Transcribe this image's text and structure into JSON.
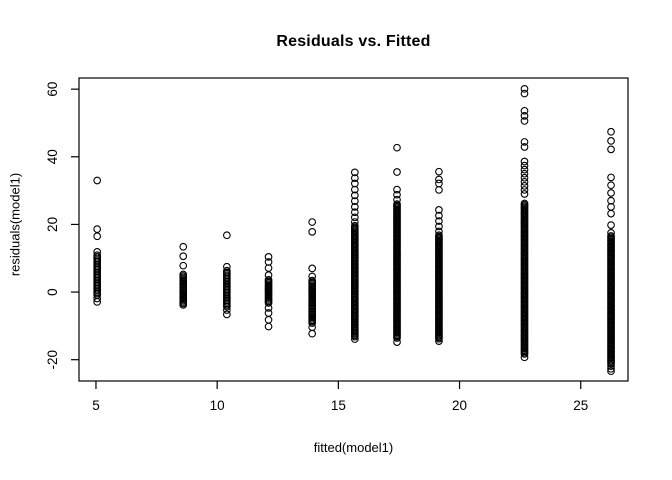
{
  "title": "Residuals vs. Fitted",
  "colors": {
    "background": "#ffffff",
    "foreground": "#000000"
  },
  "chart_data": {
    "type": "scatter",
    "title": "Residuals vs. Fitted",
    "xlabel": "fitted(model1)",
    "ylabel": "residuals(model1)",
    "xlim": [
      4.3,
      26.95
    ],
    "ylim": [
      -26.3,
      63.3
    ],
    "x_ticks": [
      5,
      10,
      15,
      20,
      25
    ],
    "y_ticks": [
      -20,
      0,
      20,
      40,
      60
    ],
    "grid": false,
    "legend": null,
    "marker": {
      "shape": "open-circle",
      "radius_px": 3.3,
      "color": "#000000"
    },
    "columns": [
      {
        "x": 5.05,
        "points": [
          33.0,
          18.6,
          16.5,
          11.9,
          -1.9,
          -2.9
        ],
        "dense": [
          {
            "from": 10.9,
            "to": -0.9,
            "n": 26
          }
        ]
      },
      {
        "x": 8.6,
        "points": [
          13.4,
          10.6,
          7.8
        ],
        "dense": [
          {
            "from": 5.2,
            "to": -3.8,
            "n": 22
          }
        ]
      },
      {
        "x": 10.4,
        "points": [
          16.8,
          7.5,
          -5.3,
          -6.6
        ],
        "dense": [
          {
            "from": 6.3,
            "to": -4.3,
            "n": 24
          }
        ]
      },
      {
        "x": 12.12,
        "points": [
          10.4,
          8.9,
          7.1,
          5.0,
          -4.7,
          -6.2,
          -8.2,
          -10.2
        ],
        "dense": [
          {
            "from": 3.6,
            "to": -3.2,
            "n": 17
          }
        ]
      },
      {
        "x": 13.92,
        "points": [
          20.7,
          17.8,
          7.0,
          4.6,
          -10.4,
          -12.3
        ],
        "dense": [
          {
            "from": 3.4,
            "to": -9.2,
            "n": 30
          }
        ]
      },
      {
        "x": 15.68,
        "points": [
          35.4,
          33.7,
          32.1,
          30.3,
          28.6,
          26.9,
          25.2,
          23.6,
          22.1,
          20.7,
          -13.9
        ],
        "dense": [
          {
            "from": 19.6,
            "to": -13.2,
            "n": 85
          }
        ]
      },
      {
        "x": 17.42,
        "points": [
          42.7,
          35.5,
          30.3,
          28.8,
          27.3,
          -14.8
        ],
        "dense": [
          {
            "from": 26.0,
            "to": -13.6,
            "n": 98
          }
        ]
      },
      {
        "x": 19.15,
        "points": [
          35.6,
          33.3,
          32.1,
          30.2,
          24.3,
          22.6,
          21.0,
          19.4,
          17.9,
          -14.5
        ],
        "dense": [
          {
            "from": 16.8,
            "to": -13.8,
            "n": 76
          }
        ]
      },
      {
        "x": 22.68,
        "points": [
          60.1,
          58.7,
          53.6,
          52.1,
          50.6,
          44.4,
          42.9,
          38.6,
          37.4,
          36.2,
          35.0,
          33.8,
          32.6,
          31.4,
          30.2,
          29.0,
          -19.3
        ],
        "dense": [
          {
            "from": 26.2,
            "to": -18.3,
            "n": 112
          }
        ]
      },
      {
        "x": 26.25,
        "points": [
          47.4,
          44.7,
          42.2,
          33.9,
          31.6,
          29.3,
          27.0,
          25.2,
          23.2,
          19.8,
          17.5,
          -21.9,
          -22.7,
          -23.4
        ],
        "dense": [
          {
            "from": 16.6,
            "to": -21.2,
            "n": 95
          }
        ]
      }
    ]
  }
}
